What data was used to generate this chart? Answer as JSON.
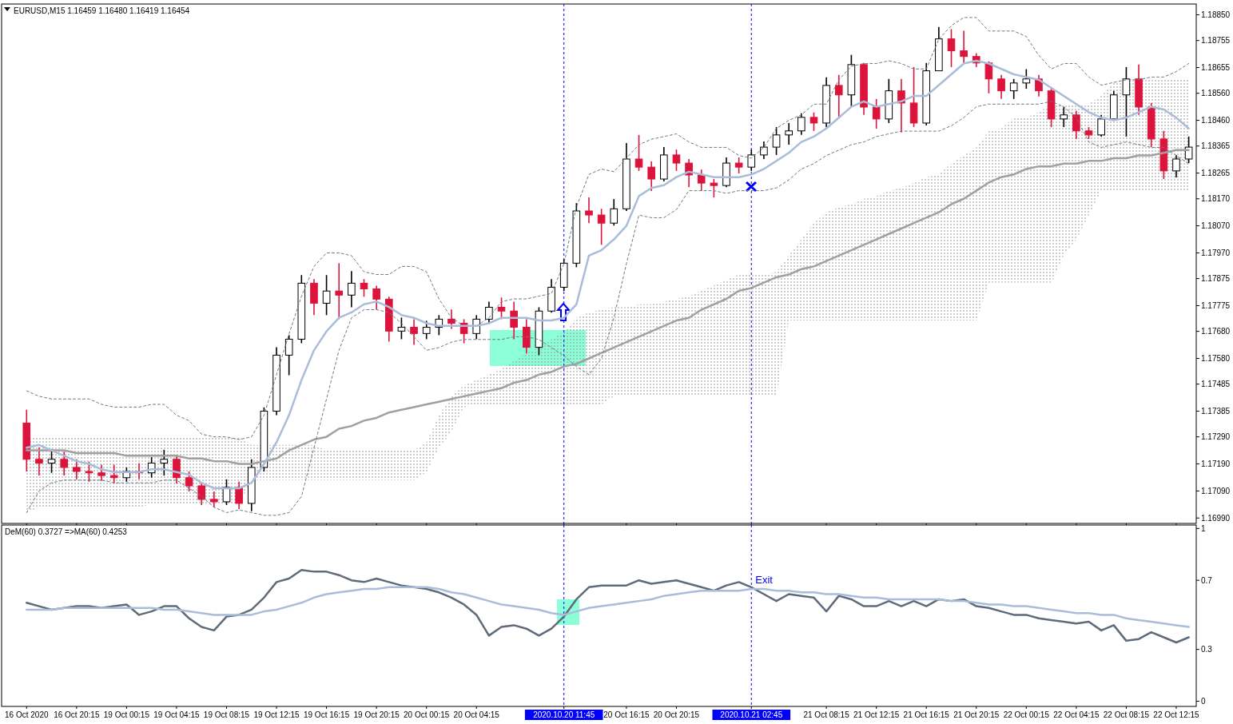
{
  "chart_data": [
    {
      "type": "candlestick",
      "title": "EURUSD,M15  1.16459 1.16480 1.16419 1.16454",
      "categories": [
        "16 Oct 2020",
        null,
        null,
        null,
        "16 Oct 20:15",
        null,
        null,
        null,
        "19 Oct 00:15",
        null,
        null,
        null,
        "19 Oct 04:15",
        null,
        null,
        null,
        "19 Oct 08:15",
        null,
        null,
        null,
        "19 Oct 12:15",
        null,
        null,
        null,
        "19 Oct 16:15",
        null,
        null,
        null,
        "19 Oct 20:15",
        null,
        null,
        null,
        "20 Oct 00:15",
        null,
        null,
        null,
        "20 Oct 04:15",
        null,
        null,
        null,
        null,
        null,
        null,
        "2020.10.20 11:45",
        null,
        null,
        null,
        null,
        "20 Oct 16:15",
        null,
        null,
        null,
        "20 Oct 20:15",
        null,
        null,
        null,
        null,
        null,
        "2020.10.21 02:45",
        null,
        null,
        null,
        null,
        null,
        "21 Oct 08:15",
        null,
        null,
        null,
        "21 Oct 12:15",
        null,
        null,
        null,
        "21 Oct 16:15",
        null,
        null,
        null,
        "21 Oct 20:15",
        null,
        null,
        null,
        "22 Oct 00:15",
        null,
        null,
        null,
        "22 Oct 04:15",
        null,
        null,
        null,
        "22 Oct 08:15",
        null,
        null,
        null,
        "22 Oct 12:15",
        null
      ],
      "ohlc": [
        [
          1.17341,
          1.1739,
          1.17162,
          1.17207
        ],
        [
          1.17207,
          1.17251,
          1.17147,
          1.17193
        ],
        [
          1.17193,
          1.17245,
          1.17157,
          1.17207
        ],
        [
          1.17207,
          1.17235,
          1.17147,
          1.17177
        ],
        [
          1.17177,
          1.17207,
          1.17133,
          1.17162
        ],
        [
          1.17162,
          1.17198,
          1.17124,
          1.17157
        ],
        [
          1.17157,
          1.17187,
          1.17127,
          1.17147
        ],
        [
          1.17147,
          1.17187,
          1.17118,
          1.17139
        ],
        [
          1.17139,
          1.17177,
          1.17124,
          1.17162
        ],
        [
          1.17162,
          1.17193,
          1.17133,
          1.17157
        ],
        [
          1.17157,
          1.17215,
          1.17139,
          1.17193
        ],
        [
          1.17193,
          1.17242,
          1.17147,
          1.17207
        ],
        [
          1.17207,
          1.17221,
          1.17118,
          1.17139
        ],
        [
          1.17139,
          1.17162,
          1.17088,
          1.17109
        ],
        [
          1.17109,
          1.17118,
          1.17038,
          1.17059
        ],
        [
          1.17059,
          1.17088,
          1.17029,
          1.1705
        ],
        [
          1.1705,
          1.17133,
          1.17038,
          1.17103
        ],
        [
          1.17103,
          1.17124,
          1.17023,
          1.17044
        ],
        [
          1.17044,
          1.17207,
          1.17015,
          1.17177
        ],
        [
          1.17177,
          1.17399,
          1.17162,
          1.17385
        ],
        [
          1.17385,
          1.17621,
          1.1737,
          1.17592
        ],
        [
          1.17592,
          1.17666,
          1.17518,
          1.17651
        ],
        [
          1.17651,
          1.17888,
          1.17636,
          1.17858
        ],
        [
          1.17858,
          1.17873,
          1.1774,
          1.17784
        ],
        [
          1.17784,
          1.17888,
          1.1774,
          1.17829
        ],
        [
          1.17829,
          1.17932,
          1.17725,
          1.17814
        ],
        [
          1.17814,
          1.17903,
          1.17769,
          1.17858
        ],
        [
          1.17858,
          1.17873,
          1.17808,
          1.17837
        ],
        [
          1.17837,
          1.17849,
          1.17761,
          1.17799
        ],
        [
          1.17799,
          1.17808,
          1.17642,
          1.17681
        ],
        [
          1.17681,
          1.17731,
          1.17651,
          1.17695
        ],
        [
          1.17695,
          1.17725,
          1.1763,
          1.17672
        ],
        [
          1.17672,
          1.17719,
          1.17651,
          1.17695
        ],
        [
          1.17695,
          1.1774,
          1.17666,
          1.17725
        ],
        [
          1.17725,
          1.17761,
          1.17689,
          1.1771
        ],
        [
          1.1771,
          1.17725,
          1.17636,
          1.17672
        ],
        [
          1.17672,
          1.1774,
          1.17651,
          1.17725
        ],
        [
          1.17725,
          1.1779,
          1.1771,
          1.17769
        ],
        [
          1.17769,
          1.17805,
          1.17725,
          1.17755
        ],
        [
          1.17755,
          1.1779,
          1.17651,
          1.17695
        ],
        [
          1.17695,
          1.17725,
          1.17598,
          1.17621
        ],
        [
          1.17621,
          1.17769,
          1.17592,
          1.17755
        ],
        [
          1.17755,
          1.17873,
          1.17749,
          1.17843
        ],
        [
          1.17843,
          1.17947,
          1.17829,
          1.17932
        ],
        [
          1.17932,
          1.18154,
          1.17917,
          1.18125
        ],
        [
          1.18125,
          1.18175,
          1.1808,
          1.1811
        ],
        [
          1.1811,
          1.18133,
          1.18,
          1.1808
        ],
        [
          1.1808,
          1.18169,
          1.18071,
          1.18133
        ],
        [
          1.18133,
          1.18376,
          1.18125,
          1.18317
        ],
        [
          1.18317,
          1.18406,
          1.18273,
          1.18287
        ],
        [
          1.18287,
          1.18308,
          1.18199,
          1.18243
        ],
        [
          1.18243,
          1.18361,
          1.18234,
          1.18332
        ],
        [
          1.18332,
          1.18352,
          1.18273,
          1.18302
        ],
        [
          1.18302,
          1.18317,
          1.18213,
          1.18258
        ],
        [
          1.18258,
          1.18278,
          1.18199,
          1.18228
        ],
        [
          1.18228,
          1.18243,
          1.18175,
          1.18219
        ],
        [
          1.18219,
          1.18323,
          1.18213,
          1.18302
        ],
        [
          1.18302,
          1.18323,
          1.18264,
          1.18287
        ],
        [
          1.18287,
          1.18352,
          1.18273,
          1.18332
        ],
        [
          1.18332,
          1.18382,
          1.18317,
          1.18361
        ],
        [
          1.18361,
          1.18435,
          1.18332,
          1.18406
        ],
        [
          1.18406,
          1.1845,
          1.1837,
          1.18421
        ],
        [
          1.18421,
          1.18486,
          1.18406,
          1.18471
        ],
        [
          1.18471,
          1.18489,
          1.18421,
          1.1845
        ],
        [
          1.1845,
          1.18619,
          1.18435,
          1.18589
        ],
        [
          1.18589,
          1.18628,
          1.18471,
          1.18554
        ],
        [
          1.18554,
          1.18702,
          1.18509,
          1.18666
        ],
        [
          1.18666,
          1.18672,
          1.1848,
          1.18509
        ],
        [
          1.18509,
          1.18539,
          1.18429,
          1.18465
        ],
        [
          1.18465,
          1.18613,
          1.1845,
          1.18569
        ],
        [
          1.18569,
          1.18613,
          1.18415,
          1.18524
        ],
        [
          1.18524,
          1.18657,
          1.18435,
          1.1845
        ],
        [
          1.1845,
          1.18672,
          1.18441,
          1.18643
        ],
        [
          1.18643,
          1.18805,
          1.18643,
          1.18761
        ],
        [
          1.18761,
          1.18797,
          1.18657,
          1.18717
        ],
        [
          1.18717,
          1.18791,
          1.18672,
          1.18696
        ],
        [
          1.18696,
          1.18708,
          1.18657,
          1.18672
        ],
        [
          1.18672,
          1.18678,
          1.1856,
          1.18613
        ],
        [
          1.18613,
          1.18628,
          1.18539,
          1.18569
        ],
        [
          1.18569,
          1.18613,
          1.18539,
          1.18598
        ],
        [
          1.18598,
          1.18649,
          1.18577,
          1.18613
        ],
        [
          1.18613,
          1.18628,
          1.18548,
          1.18569
        ],
        [
          1.18569,
          1.18583,
          1.18435,
          1.18465
        ],
        [
          1.18465,
          1.18509,
          1.18435,
          1.1848
        ],
        [
          1.1848,
          1.18495,
          1.18391,
          1.18421
        ],
        [
          1.18421,
          1.18435,
          1.18391,
          1.18406
        ],
        [
          1.18406,
          1.1848,
          1.184,
          1.18465
        ],
        [
          1.18465,
          1.18569,
          1.18465,
          1.18554
        ],
        [
          1.18554,
          1.18657,
          1.184,
          1.18613
        ],
        [
          1.18613,
          1.18666,
          1.1848,
          1.18509
        ],
        [
          1.18509,
          1.18524,
          1.18361,
          1.18391
        ],
        [
          1.18391,
          1.18421,
          1.18243,
          1.18273
        ],
        [
          1.18273,
          1.18332,
          1.18249,
          1.18317
        ],
        [
          1.18317,
          1.184,
          1.18302,
          1.18361
        ]
      ],
      "series": [
        {
          "type": "line",
          "color": "#9a9a9a",
          "values": [
            null,
            null,
            null,
            null,
            null,
            null,
            null,
            null,
            null,
            null,
            null,
            null,
            null,
            null,
            null,
            null,
            null,
            null,
            null,
            null,
            null,
            null,
            null,
            null,
            null,
            null,
            null,
            null,
            null,
            null,
            null,
            null,
            null,
            null,
            null,
            null,
            null,
            null,
            null,
            null,
            null,
            null,
            null,
            null,
            null,
            null,
            null,
            null,
            null,
            null,
            null,
            null,
            null,
            null,
            null,
            null,
            null,
            null,
            null,
            null,
            null,
            null,
            null,
            null,
            null,
            null,
            null,
            null,
            null,
            null,
            null,
            null,
            null,
            null,
            null,
            null,
            null,
            null,
            null,
            null,
            null,
            null,
            null,
            null,
            null,
            null,
            null,
            null,
            null,
            null,
            null,
            null,
            null,
            null
          ],
          "upper": [
            1.1729,
            1.1729,
            1.1729,
            1.1729,
            1.1729,
            1.1729,
            1.1729,
            1.1729,
            1.1729,
            1.1729,
            1.1729,
            1.1729,
            1.1729,
            1.1729,
            1.1729,
            1.1729,
            1.1729,
            1.1729,
            1.1726,
            1.1726,
            1.1726,
            1.1726,
            1.1726,
            1.1726,
            1.1724,
            1.1724,
            1.1724,
            1.1724,
            1.1724,
            1.1724,
            1.1724,
            1.1724,
            1.1727,
            1.1737,
            1.1744,
            1.1748,
            1.175,
            1.1752,
            1.1754,
            1.1757,
            1.176,
            1.1762,
            1.1765,
            1.1768,
            1.1773,
            1.1775,
            1.1776,
            1.1777,
            1.1777,
            1.1778,
            1.1778,
            1.1779,
            1.178,
            1.1781,
            1.1783,
            1.1785,
            1.1787,
            1.1789,
            1.1789,
            1.1789,
            1.179,
            1.1796,
            1.1802,
            1.1808,
            1.1812,
            1.1814,
            1.1815,
            1.1817,
            1.1818,
            1.182,
            1.1821,
            1.1823,
            1.1825,
            1.1826,
            1.183,
            1.1833,
            1.1836,
            1.1842,
            1.1843,
            1.1847,
            1.1847,
            1.1849,
            1.1852,
            1.1852,
            1.1852,
            1.1852,
            1.1855,
            1.186,
            1.1861,
            1.1861,
            1.1861,
            1.1861,
            1.1861,
            1.1861
          ],
          "lower": [
            1.1701,
            1.1703,
            1.1703,
            1.1703,
            1.1703,
            1.1703,
            1.1703,
            1.1703,
            1.1703,
            1.1703,
            1.1704,
            1.1704,
            1.1704,
            1.1704,
            1.1704,
            1.1704,
            1.1704,
            1.1704,
            1.1713,
            1.1713,
            1.1713,
            1.1713,
            1.1713,
            1.1713,
            1.1713,
            1.1713,
            1.1713,
            1.1713,
            1.1713,
            1.1713,
            1.1713,
            1.1713,
            1.1716,
            1.1725,
            1.1731,
            1.174,
            1.1741,
            1.1741,
            1.1741,
            1.1741,
            1.1741,
            1.1741,
            1.1741,
            1.1741,
            1.1741,
            1.1741,
            1.1741,
            1.1744,
            1.1744,
            1.1744,
            1.1744,
            1.1744,
            1.1744,
            1.1744,
            1.1744,
            1.1744,
            1.1744,
            1.1744,
            1.1744,
            1.1744,
            1.1744,
            1.1772,
            1.1772,
            1.1772,
            1.1772,
            1.1772,
            1.1772,
            1.1772,
            1.1772,
            1.1772,
            1.1772,
            1.1772,
            1.1772,
            1.1772,
            1.1772,
            1.1772,
            1.1772,
            1.1786,
            1.1786,
            1.1786,
            1.1786,
            1.1786,
            1.1786,
            1.1796,
            1.1802,
            1.1811,
            1.182,
            1.182,
            1.182,
            1.182,
            1.182,
            1.182,
            1.182,
            1.182
          ]
        },
        {
          "type": "line",
          "color": "#a0a0a0",
          "values": [
            1.1724,
            1.1724,
            1.1724,
            1.1724,
            1.1723,
            1.1723,
            1.1723,
            1.1723,
            1.1722,
            1.1722,
            1.1722,
            1.1722,
            1.1722,
            1.1721,
            1.1721,
            1.172,
            1.172,
            1.1719,
            1.1719,
            1.172,
            1.1721,
            1.1724,
            1.1726,
            1.1728,
            1.1729,
            1.1732,
            1.1733,
            1.1735,
            1.1736,
            1.1738,
            1.1739,
            1.174,
            1.1741,
            1.1742,
            1.1743,
            1.1744,
            1.1745,
            1.1746,
            1.1747,
            1.1749,
            1.175,
            1.1752,
            1.1753,
            1.1755,
            1.1756,
            1.1758,
            1.176,
            1.1762,
            1.1764,
            1.1766,
            1.1768,
            1.177,
            1.1772,
            1.1773,
            1.1776,
            1.1778,
            1.178,
            1.1783,
            1.1784,
            1.1786,
            1.1788,
            1.1789,
            1.1791,
            1.1792,
            1.1794,
            1.1796,
            1.1798,
            1.18,
            1.1802,
            1.1804,
            1.1806,
            1.1808,
            1.181,
            1.1812,
            1.1815,
            1.1817,
            1.182,
            1.1823,
            1.1825,
            1.1826,
            1.1828,
            1.1829,
            1.1829,
            1.183,
            1.183,
            1.1831,
            1.1831,
            1.1832,
            1.1832,
            1.1833,
            1.1833,
            1.1834,
            1.1835,
            1.1835
          ]
        },
        {
          "type": "line",
          "color": "#6c7a89",
          "line_style": "dashed",
          "values": [
            1.1746,
            1.1744,
            1.1743,
            1.1743,
            1.1743,
            1.1743,
            1.1741,
            1.174,
            1.174,
            1.174,
            1.1741,
            1.1741,
            1.1737,
            1.1735,
            1.173,
            1.1729,
            1.1729,
            1.1728,
            1.1729,
            1.1737,
            1.1752,
            1.1767,
            1.1781,
            1.1792,
            1.1797,
            1.1797,
            1.1796,
            1.179,
            1.1789,
            1.1789,
            1.1792,
            1.1792,
            1.179,
            1.178,
            1.1773,
            1.177,
            1.177,
            1.1773,
            1.1779,
            1.178,
            1.178,
            1.1781,
            1.1782,
            1.1793,
            1.1814,
            1.1826,
            1.1828,
            1.1827,
            1.1832,
            1.1837,
            1.1839,
            1.184,
            1.1841,
            1.1838,
            1.1836,
            1.1836,
            1.1836,
            1.1833,
            1.1832,
            1.1836,
            1.1843,
            1.1846,
            1.1848,
            1.1852,
            1.1852,
            1.1861,
            1.1866,
            1.1867,
            1.1867,
            1.1868,
            1.1867,
            1.1865,
            1.1865,
            1.1876,
            1.1881,
            1.1884,
            1.1884,
            1.1879,
            1.1879,
            1.1879,
            1.1877,
            1.187,
            1.1865,
            1.1867,
            1.1867,
            1.1862,
            1.1859,
            1.186,
            1.1861,
            1.1861,
            1.1862,
            1.1862,
            1.1864,
            1.1867
          ]
        },
        {
          "type": "line",
          "color": "#6c7a89",
          "line_style": "dashed",
          "values": [
            1.1701,
            1.1709,
            1.1712,
            1.1713,
            1.1713,
            1.1713,
            1.1713,
            1.1712,
            1.1712,
            1.1712,
            1.1712,
            1.1713,
            1.1713,
            1.171,
            1.1707,
            1.1703,
            1.1701,
            1.1702,
            1.1701,
            1.17,
            1.17,
            1.1701,
            1.1707,
            1.1725,
            1.1743,
            1.1761,
            1.1773,
            1.1776,
            1.1776,
            1.1775,
            1.1771,
            1.1766,
            1.1761,
            1.1762,
            1.1764,
            1.1765,
            1.1765,
            1.1765,
            1.1765,
            1.1766,
            1.1766,
            1.1765,
            1.1762,
            1.1759,
            1.1755,
            1.1752,
            1.1758,
            1.1773,
            1.1793,
            1.1811,
            1.181,
            1.181,
            1.1813,
            1.182,
            1.182,
            1.182,
            1.1819,
            1.182,
            1.182,
            1.182,
            1.1821,
            1.1824,
            1.1828,
            1.183,
            1.1833,
            1.1835,
            1.1837,
            1.1838,
            1.184,
            1.1841,
            1.1842,
            1.1842,
            1.1842,
            1.1842,
            1.1844,
            1.1847,
            1.1851,
            1.1852,
            1.1852,
            1.1852,
            1.1852,
            1.1852,
            1.1853,
            1.1851,
            1.1847,
            1.1838,
            1.1836,
            1.1837,
            1.1838,
            1.1837,
            1.1836,
            1.1836,
            1.1833,
            1.183
          ]
        },
        {
          "type": "line",
          "color": "#a9bcd9",
          "values": [
            1.1725,
            1.1726,
            1.1724,
            1.1722,
            1.172,
            1.1719,
            1.1717,
            1.1716,
            1.1716,
            1.1716,
            1.1717,
            1.1717,
            1.1716,
            1.1715,
            1.1712,
            1.171,
            1.171,
            1.171,
            1.1712,
            1.1719,
            1.1727,
            1.1737,
            1.175,
            1.1761,
            1.1768,
            1.1773,
            1.1775,
            1.1778,
            1.1779,
            1.1777,
            1.1774,
            1.1773,
            1.1771,
            1.177,
            1.177,
            1.177,
            1.177,
            1.1771,
            1.1773,
            1.1773,
            1.1773,
            1.1772,
            1.1772,
            1.1773,
            1.1778,
            1.1796,
            1.1798,
            1.1802,
            1.1807,
            1.1818,
            1.1821,
            1.1822,
            1.1825,
            1.1827,
            1.1826,
            1.1825,
            1.1825,
            1.1825,
            1.1826,
            1.1828,
            1.1831,
            1.1834,
            1.1838,
            1.184,
            1.1843,
            1.1847,
            1.1851,
            1.1853,
            1.1851,
            1.1852,
            1.1853,
            1.1855,
            1.1855,
            1.1859,
            1.1863,
            1.1867,
            1.1868,
            1.1867,
            1.1865,
            1.1863,
            1.1862,
            1.1861,
            1.1858,
            1.1855,
            1.1852,
            1.1849,
            1.1847,
            1.1846,
            1.1847,
            1.1849,
            1.1851,
            1.185,
            1.1847,
            1.1843
          ]
        }
      ],
      "ylim": [
        1.1697,
        1.1889
      ],
      "yticks": [
        {
          "value": 1.1885,
          "label": "1.18850"
        },
        1.18755,
        1.18655,
        {
          "value": 1.1856,
          "label": "1.18560"
        },
        {
          "value": 1.1846,
          "label": "1.18460"
        },
        1.18365,
        1.18265,
        {
          "value": 1.1817,
          "label": "1.18170"
        },
        {
          "value": 1.1807,
          "label": "1.18070"
        },
        {
          "value": 1.1797,
          "label": "1.17970"
        },
        1.17875,
        1.17775,
        {
          "value": 1.1768,
          "label": "1.17680"
        },
        {
          "value": 1.1758,
          "label": "1.17580"
        },
        1.17485,
        1.17385,
        {
          "value": 1.1729,
          "label": "1.17290"
        },
        {
          "value": 1.1719,
          "label": "1.17190"
        },
        {
          "value": 1.1709,
          "label": "1.17090"
        },
        {
          "value": 1.1699,
          "label": "1.16990"
        }
      ],
      "tick_labels": "y",
      "ref_lines": [
        {
          "axis": "x",
          "value": "2020.10.20 11:45",
          "color": "#0000ff",
          "line_style": "dashed"
        },
        {
          "axis": "x",
          "value": "2020.10.21 02:45",
          "color": "#0000ff",
          "line_style": "dashed"
        }
      ]
    },
    {
      "type": "line",
      "title": "DeM(60) 0.3727  =>MA(60) 0.4253",
      "categories": [
        "16 Oct 2020",
        null,
        null,
        null,
        "16 Oct 20:15",
        null,
        null,
        null,
        "19 Oct 00:15",
        null,
        null,
        null,
        "19 Oct 04:15",
        null,
        null,
        null,
        "19 Oct 08:15",
        null,
        null,
        null,
        "19 Oct 12:15",
        null,
        null,
        null,
        "19 Oct 16:15",
        null,
        null,
        null,
        "19 Oct 20:15",
        null,
        null,
        null,
        "20 Oct 00:15",
        null,
        null,
        null,
        "20 Oct 04:15",
        null,
        null,
        null,
        null,
        null,
        null,
        "2020.10.20 11:45",
        null,
        null,
        null,
        null,
        "20 Oct 16:15",
        null,
        null,
        null,
        "20 Oct 20:15",
        null,
        null,
        null,
        null,
        null,
        "2020.10.21 02:45",
        null,
        null,
        null,
        null,
        null,
        "21 Oct 08:15",
        null,
        null,
        null,
        "21 Oct 12:15",
        null,
        null,
        null,
        "21 Oct 16:15",
        null,
        null,
        null,
        "21 Oct 20:15",
        null,
        null,
        null,
        "22 Oct 00:15",
        null,
        null,
        null,
        "22 Oct 04:15",
        null,
        null,
        null,
        "22 Oct 08:15",
        null,
        null,
        null,
        "22 Oct 12:15",
        null
      ],
      "series": [
        {
          "color": "#5f6b7a",
          "values": [
            0.57,
            0.55,
            0.53,
            0.54,
            0.55,
            0.55,
            0.54,
            0.55,
            0.56,
            0.5,
            0.52,
            0.55,
            0.55,
            0.48,
            0.43,
            0.41,
            0.49,
            0.5,
            0.53,
            0.6,
            0.69,
            0.71,
            0.76,
            0.75,
            0.75,
            0.73,
            0.7,
            0.69,
            0.71,
            0.69,
            0.67,
            0.66,
            0.65,
            0.63,
            0.6,
            0.56,
            0.5,
            0.38,
            0.43,
            0.44,
            0.42,
            0.38,
            0.42,
            0.49,
            0.59,
            0.66,
            0.67,
            0.67,
            0.67,
            0.7,
            0.68,
            0.69,
            0.7,
            0.68,
            0.66,
            0.64,
            0.67,
            0.69,
            0.66,
            0.62,
            0.58,
            0.62,
            0.61,
            0.6,
            0.52,
            0.61,
            0.59,
            0.55,
            0.55,
            0.58,
            0.55,
            0.58,
            0.55,
            0.59,
            0.58,
            0.59,
            0.55,
            0.54,
            0.52,
            0.5,
            0.5,
            0.48,
            0.47,
            0.46,
            0.45,
            0.46,
            0.41,
            0.44,
            0.35,
            0.36,
            0.4,
            0.37,
            0.34,
            0.37
          ]
        },
        {
          "color": "#a9bcd9",
          "values": [
            0.53,
            0.53,
            0.53,
            0.54,
            0.54,
            0.54,
            0.54,
            0.54,
            0.54,
            0.54,
            0.54,
            0.53,
            0.53,
            0.52,
            0.51,
            0.5,
            0.5,
            0.5,
            0.5,
            0.52,
            0.53,
            0.55,
            0.57,
            0.6,
            0.62,
            0.63,
            0.64,
            0.65,
            0.65,
            0.66,
            0.66,
            0.66,
            0.66,
            0.65,
            0.63,
            0.62,
            0.6,
            0.58,
            0.56,
            0.55,
            0.54,
            0.53,
            0.51,
            0.5,
            0.52,
            0.54,
            0.55,
            0.56,
            0.57,
            0.58,
            0.59,
            0.61,
            0.62,
            0.63,
            0.64,
            0.64,
            0.64,
            0.64,
            0.65,
            0.65,
            0.64,
            0.64,
            0.63,
            0.63,
            0.62,
            0.62,
            0.61,
            0.6,
            0.6,
            0.59,
            0.59,
            0.59,
            0.59,
            0.59,
            0.58,
            0.58,
            0.57,
            0.56,
            0.56,
            0.55,
            0.55,
            0.54,
            0.53,
            0.52,
            0.51,
            0.51,
            0.5,
            0.5,
            0.48,
            0.47,
            0.46,
            0.45,
            0.44,
            0.43
          ]
        }
      ],
      "ylim": [
        -0.03,
        1.02
      ],
      "yticks": [
        0,
        0.3,
        0.7,
        1
      ],
      "ref_lines": [
        {
          "axis": "x",
          "value": "2020.10.20 11:45",
          "color": "#0000ff",
          "line_style": "dashed"
        },
        {
          "axis": "x",
          "value": "2020.10.21 02:45",
          "color": "#0000ff",
          "line_style": "dashed"
        }
      ],
      "annotations": [
        "Exit"
      ]
    }
  ]
}
